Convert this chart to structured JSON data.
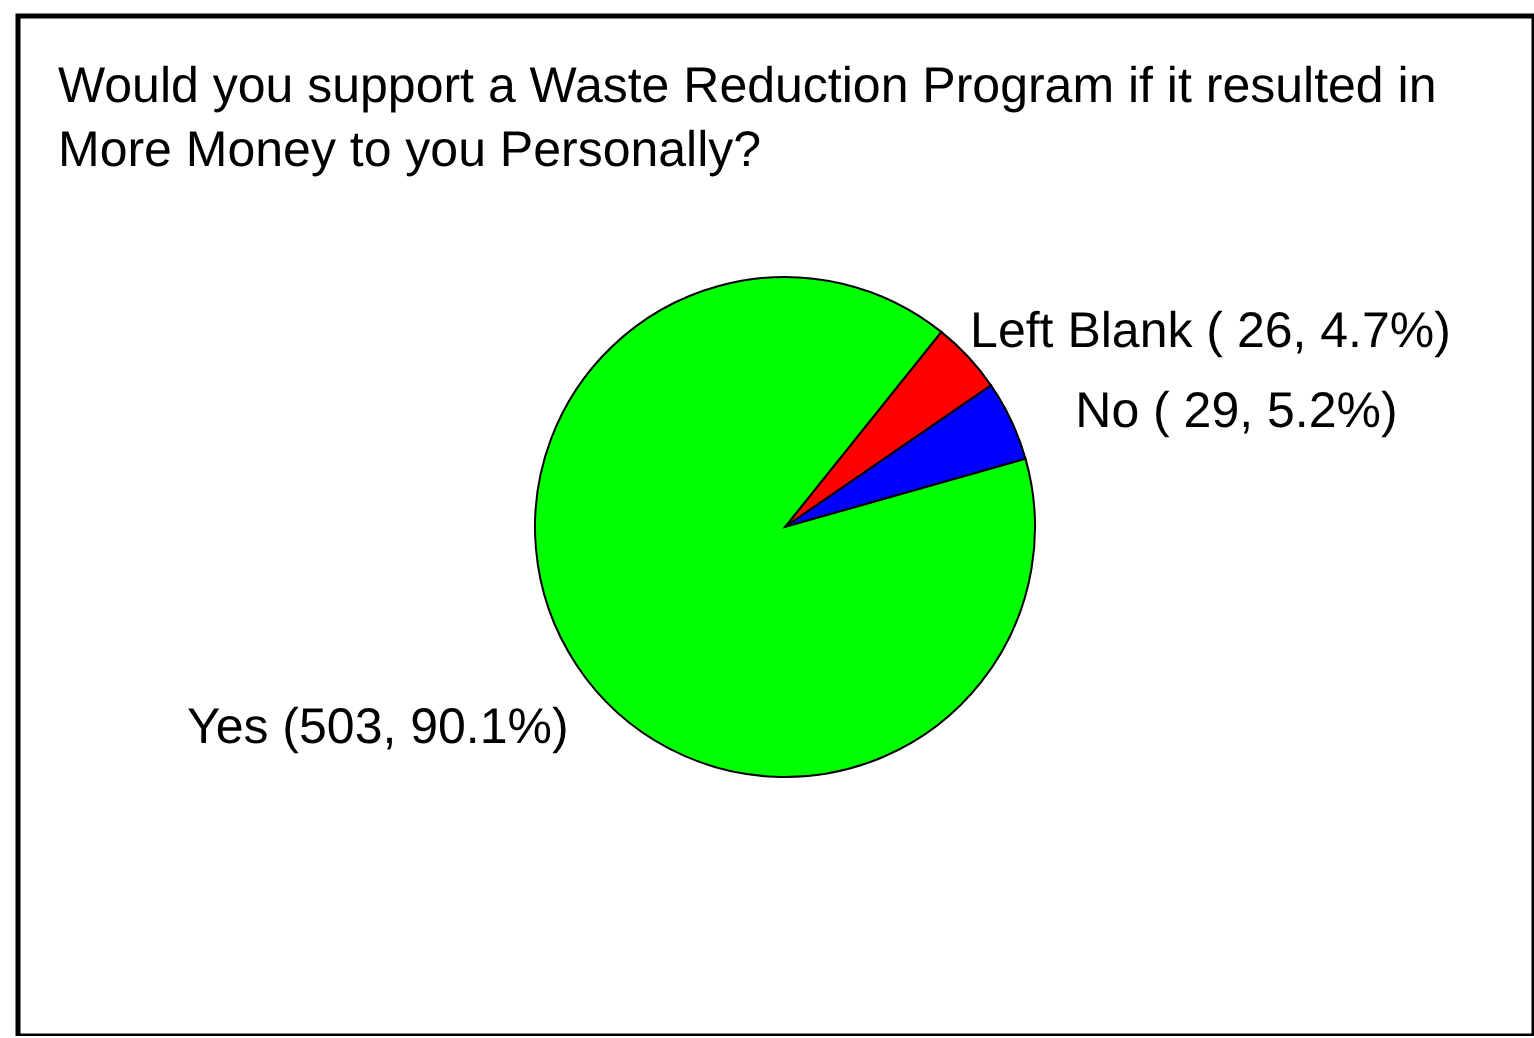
{
  "chart_data": {
    "type": "pie",
    "title": "Would you support a Waste Reduction Program if it resulted in\nMore Money to you Personally?",
    "categories": [
      "Left Blank",
      "No",
      "Yes"
    ],
    "values": [
      26,
      29,
      503
    ],
    "colors": [
      "#ff0000",
      "#0000ff",
      "#00ff00"
    ],
    "value_labels": [
      "( 26,  4.7%)",
      "( 29,  5.2%)",
      "(503, 90.1%)"
    ],
    "legend": false
  }
}
